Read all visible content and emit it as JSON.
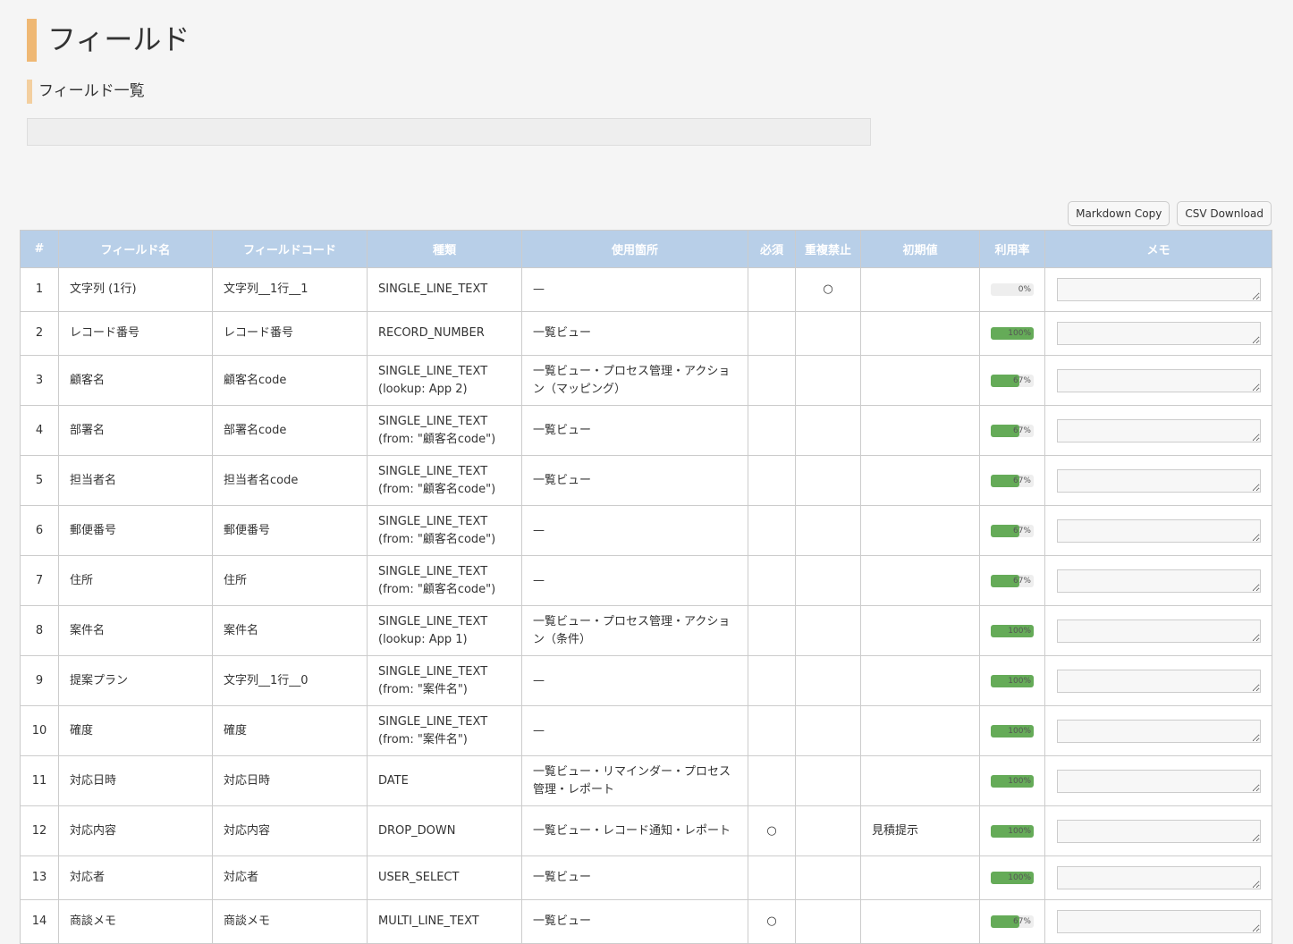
{
  "title": "フィールド",
  "subtitle": "フィールド一覧",
  "buttons": {
    "markdown": "Markdown Copy",
    "csv": "CSV Download"
  },
  "columns": [
    "#",
    "フィールド名",
    "フィールドコード",
    "種類",
    "使用箇所",
    "必須",
    "重複禁止",
    "初期値",
    "利用率",
    "メモ"
  ],
  "accent": "#efb874",
  "header_bg": "#b8cfe8",
  "bar_color": "#65ab58",
  "rows": [
    {
      "no": "1",
      "name": "文字列 (1行)",
      "code": "文字列__1行__1",
      "type": "SINGLE_LINE_TEXT",
      "type2": "",
      "usage": "—",
      "required": "",
      "unique": "○",
      "default": "",
      "rate": 0
    },
    {
      "no": "2",
      "name": "レコード番号",
      "code": "レコード番号",
      "type": "RECORD_NUMBER",
      "type2": "",
      "usage": "一覧ビュー",
      "required": "",
      "unique": "",
      "default": "",
      "rate": 100
    },
    {
      "no": "3",
      "name": "顧客名",
      "code": "顧客名code",
      "type": "SINGLE_LINE_TEXT",
      "type2": "(lookup: App 2)",
      "usage": "一覧ビュー・プロセス管理・アクション（マッピング）",
      "required": "",
      "unique": "",
      "default": "",
      "rate": 67
    },
    {
      "no": "4",
      "name": "部署名",
      "code": "部署名code",
      "type": "SINGLE_LINE_TEXT",
      "type2": "(from: \"顧客名code\")",
      "usage": "一覧ビュー",
      "required": "",
      "unique": "",
      "default": "",
      "rate": 67
    },
    {
      "no": "5",
      "name": "担当者名",
      "code": "担当者名code",
      "type": "SINGLE_LINE_TEXT",
      "type2": "(from: \"顧客名code\")",
      "usage": "一覧ビュー",
      "required": "",
      "unique": "",
      "default": "",
      "rate": 67
    },
    {
      "no": "6",
      "name": "郵便番号",
      "code": "郵便番号",
      "type": "SINGLE_LINE_TEXT",
      "type2": "(from: \"顧客名code\")",
      "usage": "—",
      "required": "",
      "unique": "",
      "default": "",
      "rate": 67
    },
    {
      "no": "7",
      "name": "住所",
      "code": "住所",
      "type": "SINGLE_LINE_TEXT",
      "type2": "(from: \"顧客名code\")",
      "usage": "—",
      "required": "",
      "unique": "",
      "default": "",
      "rate": 67
    },
    {
      "no": "8",
      "name": "案件名",
      "code": "案件名",
      "type": "SINGLE_LINE_TEXT",
      "type2": "(lookup: App 1)",
      "usage": "一覧ビュー・プロセス管理・アクション（条件）",
      "required": "",
      "unique": "",
      "default": "",
      "rate": 100
    },
    {
      "no": "9",
      "name": "提案プラン",
      "code": "文字列__1行__0",
      "type": "SINGLE_LINE_TEXT",
      "type2": "(from: \"案件名\")",
      "usage": "—",
      "required": "",
      "unique": "",
      "default": "",
      "rate": 100
    },
    {
      "no": "10",
      "name": "確度",
      "code": "確度",
      "type": "SINGLE_LINE_TEXT",
      "type2": "(from: \"案件名\")",
      "usage": "—",
      "required": "",
      "unique": "",
      "default": "",
      "rate": 100
    },
    {
      "no": "11",
      "name": "対応日時",
      "code": "対応日時",
      "type": "DATE",
      "type2": "",
      "usage": "一覧ビュー・リマインダー・プロセス管理・レポート",
      "required": "",
      "unique": "",
      "default": "",
      "rate": 100
    },
    {
      "no": "12",
      "name": "対応内容",
      "code": "対応内容",
      "type": "DROP_DOWN",
      "type2": "",
      "usage": "一覧ビュー・レコード通知・レポート",
      "required": "○",
      "unique": "",
      "default": "見積提示",
      "rate": 100
    },
    {
      "no": "13",
      "name": "対応者",
      "code": "対応者",
      "type": "USER_SELECT",
      "type2": "",
      "usage": "一覧ビュー",
      "required": "",
      "unique": "",
      "default": "",
      "rate": 100
    },
    {
      "no": "14",
      "name": "商談メモ",
      "code": "商談メモ",
      "type": "MULTI_LINE_TEXT",
      "type2": "",
      "usage": "一覧ビュー",
      "required": "○",
      "unique": "",
      "default": "",
      "rate": 67
    }
  ]
}
